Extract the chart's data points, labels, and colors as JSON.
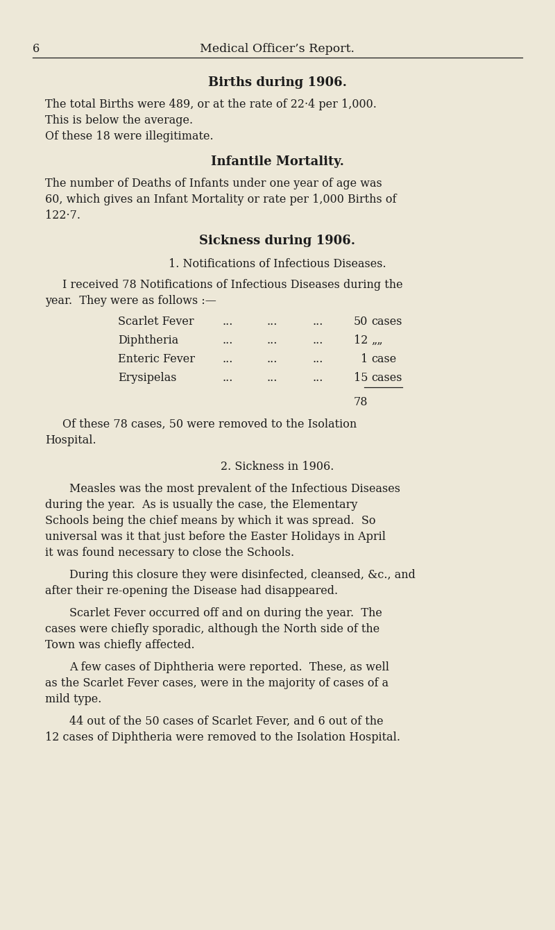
{
  "bg_color": "#ede8d8",
  "text_color": "#1c1c1c",
  "page_number": "6",
  "header_title": "Medical Officer’s Report.",
  "section1_title": "Births during 1906.",
  "section1_body": [
    "The total Births were 489, or at the rate of 22·4 per 1,000.",
    "This is below the average.",
    "Of these 18 were illegitimate."
  ],
  "section2_title": "Infantile Mortality.",
  "section2_body": [
    "The number of Deaths of Infants under one year of age was",
    "60, which gives an Infant Mortality or rate per 1,000 Births of",
    "122·7."
  ],
  "section3_title": "Sickness during 1906.",
  "section3_sub1": "1. Notifications of Infectious Diseases.",
  "section3_intro": [
    "I received 78 Notifications of Infectious Diseases during the",
    "year.  They were as follows :—"
  ],
  "disease_table": [
    [
      "Scarlet Fever",
      "50",
      "cases"
    ],
    [
      "Diphtheria",
      "12",
      "„„"
    ],
    [
      "Enteric Fever",
      "1",
      "case"
    ],
    [
      "Erysipelas",
      "15",
      "cases"
    ]
  ],
  "total_line": "78",
  "after_table": [
    "Of these 78 cases, 50 were removed to the Isolation",
    "Hospital."
  ],
  "section3_sub2": "2. Sickness in 1906.",
  "section3_body_p1": [
    "Measles was the most prevalent of the Infectious Diseases",
    "during the year.  As is usually the case, the Elementary",
    "Schools being the chief means by which it was spread.  So",
    "universal was it that just before the Easter Holidays in April",
    "it was found necessary to close the Schools."
  ],
  "section3_body_p2": [
    "During this closure they were disinfected, cleansed, &c., and",
    "after their re-opening the Disease had disappeared."
  ],
  "section3_body_p3": [
    "Scarlet Fever occurred off and on during the year.  The",
    "cases were chiefly sporadic, although the North side of the",
    "Town was chiefly affected."
  ],
  "section3_body_p4": [
    "A few cases of Diphtheria were reported.  These, as well",
    "as the Scarlet Fever cases, were in the majority of cases of a",
    "mild type."
  ],
  "section3_body_p5": [
    "44 out of the 50 cases of Scarlet Fever, and 6 out of the",
    "12 cases of Diphtheria were removed to the Isolation Hospital."
  ]
}
